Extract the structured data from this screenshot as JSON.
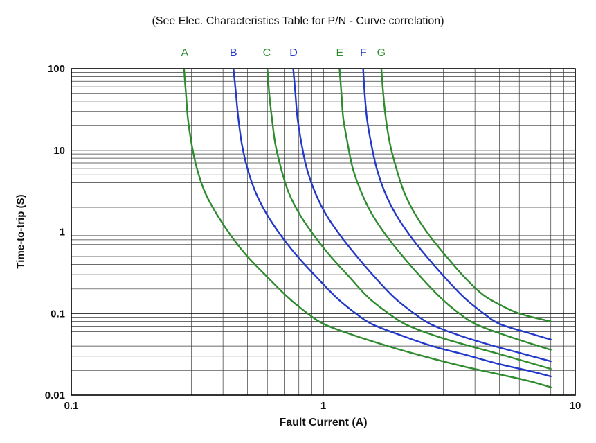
{
  "title": "(See Elec. Characteristics Table for P/N - Curve correlation)",
  "chart_data": {
    "type": "line",
    "title": "(See Elec. Characteristics Table for P/N - Curve correlation)",
    "xlabel": "Fault Current (A)",
    "ylabel": "Time-to-trip (S)",
    "x_scale": "log",
    "y_scale": "log",
    "xlim": [
      0.1,
      10
    ],
    "ylim": [
      0.01,
      100
    ],
    "x_ticks": [
      {
        "value": 0.1,
        "label": "0.1"
      },
      {
        "value": 1,
        "label": "1"
      },
      {
        "value": 10,
        "label": "10"
      }
    ],
    "y_ticks": [
      {
        "value": 100,
        "label": "100"
      },
      {
        "value": 10,
        "label": "10"
      },
      {
        "value": 1,
        "label": "1"
      },
      {
        "value": 0.1,
        "label": "0.1"
      },
      {
        "value": 0.01,
        "label": "0.01"
      }
    ],
    "grid": "log major and minor, black on white",
    "legend_position": "labels above plot",
    "colors": {
      "green": "#2e8b2e",
      "blue": "#2238c8",
      "grid": "#000000",
      "minor_grid": "#3a3a3a"
    },
    "series": [
      {
        "name": "A",
        "color": "green",
        "label_x": 0.282,
        "points": [
          [
            0.28,
            100
          ],
          [
            0.285,
            50
          ],
          [
            0.29,
            25
          ],
          [
            0.3,
            12
          ],
          [
            0.315,
            6
          ],
          [
            0.34,
            3
          ],
          [
            0.38,
            1.6
          ],
          [
            0.43,
            0.9
          ],
          [
            0.5,
            0.5
          ],
          [
            0.6,
            0.28
          ],
          [
            0.72,
            0.16
          ],
          [
            0.85,
            0.105
          ],
          [
            1.0,
            0.075
          ],
          [
            1.3,
            0.055
          ],
          [
            1.8,
            0.04
          ],
          [
            2.5,
            0.03
          ],
          [
            3.5,
            0.023
          ],
          [
            5.0,
            0.018
          ],
          [
            6.5,
            0.015
          ],
          [
            8.0,
            0.0125
          ]
        ]
      },
      {
        "name": "B",
        "color": "blue",
        "label_x": 0.44,
        "points": [
          [
            0.44,
            100
          ],
          [
            0.45,
            50
          ],
          [
            0.46,
            25
          ],
          [
            0.475,
            12
          ],
          [
            0.5,
            6
          ],
          [
            0.54,
            3
          ],
          [
            0.6,
            1.6
          ],
          [
            0.68,
            0.9
          ],
          [
            0.79,
            0.5
          ],
          [
            0.94,
            0.28
          ],
          [
            1.12,
            0.16
          ],
          [
            1.32,
            0.105
          ],
          [
            1.55,
            0.075
          ],
          [
            2.0,
            0.055
          ],
          [
            2.7,
            0.04
          ],
          [
            3.7,
            0.031
          ],
          [
            5.0,
            0.024
          ],
          [
            6.5,
            0.02
          ],
          [
            8.0,
            0.017
          ]
        ]
      },
      {
        "name": "C",
        "color": "green",
        "label_x": 0.597,
        "points": [
          [
            0.6,
            100
          ],
          [
            0.61,
            50
          ],
          [
            0.625,
            25
          ],
          [
            0.645,
            12
          ],
          [
            0.68,
            6
          ],
          [
            0.73,
            3
          ],
          [
            0.81,
            1.6
          ],
          [
            0.92,
            0.9
          ],
          [
            1.07,
            0.5
          ],
          [
            1.27,
            0.28
          ],
          [
            1.5,
            0.16
          ],
          [
            1.78,
            0.105
          ],
          [
            2.1,
            0.075
          ],
          [
            2.7,
            0.055
          ],
          [
            3.6,
            0.042
          ],
          [
            4.8,
            0.033
          ],
          [
            6.3,
            0.026
          ],
          [
            8.0,
            0.021
          ]
        ]
      },
      {
        "name": "D",
        "color": "blue",
        "label_x": 0.762,
        "points": [
          [
            0.76,
            100
          ],
          [
            0.775,
            50
          ],
          [
            0.79,
            25
          ],
          [
            0.82,
            12
          ],
          [
            0.86,
            6
          ],
          [
            0.93,
            3
          ],
          [
            1.03,
            1.6
          ],
          [
            1.17,
            0.9
          ],
          [
            1.36,
            0.5
          ],
          [
            1.6,
            0.28
          ],
          [
            1.9,
            0.16
          ],
          [
            2.25,
            0.105
          ],
          [
            2.65,
            0.075
          ],
          [
            3.4,
            0.055
          ],
          [
            4.5,
            0.042
          ],
          [
            6.0,
            0.033
          ],
          [
            8.0,
            0.026
          ]
        ]
      },
      {
        "name": "E",
        "color": "green",
        "label_x": 1.163,
        "points": [
          [
            1.16,
            100
          ],
          [
            1.18,
            50
          ],
          [
            1.2,
            25
          ],
          [
            1.25,
            12
          ],
          [
            1.31,
            6
          ],
          [
            1.42,
            3
          ],
          [
            1.57,
            1.6
          ],
          [
            1.78,
            0.9
          ],
          [
            2.07,
            0.5
          ],
          [
            2.44,
            0.28
          ],
          [
            2.9,
            0.16
          ],
          [
            3.4,
            0.105
          ],
          [
            4.0,
            0.075
          ],
          [
            5.2,
            0.055
          ],
          [
            6.8,
            0.042
          ],
          [
            8.0,
            0.036
          ]
        ]
      },
      {
        "name": "F",
        "color": "blue",
        "label_x": 1.442,
        "points": [
          [
            1.44,
            100
          ],
          [
            1.46,
            50
          ],
          [
            1.49,
            25
          ],
          [
            1.55,
            12
          ],
          [
            1.63,
            6
          ],
          [
            1.76,
            3
          ],
          [
            1.95,
            1.6
          ],
          [
            2.21,
            0.9
          ],
          [
            2.57,
            0.5
          ],
          [
            3.03,
            0.28
          ],
          [
            3.6,
            0.16
          ],
          [
            4.25,
            0.105
          ],
          [
            5.0,
            0.075
          ],
          [
            6.5,
            0.058
          ],
          [
            8.0,
            0.048
          ]
        ]
      },
      {
        "name": "G",
        "color": "green",
        "label_x": 1.7,
        "points": [
          [
            1.7,
            100
          ],
          [
            1.73,
            50
          ],
          [
            1.77,
            25
          ],
          [
            1.84,
            12
          ],
          [
            1.95,
            6
          ],
          [
            2.1,
            3
          ],
          [
            2.33,
            1.6
          ],
          [
            2.64,
            0.9
          ],
          [
            3.08,
            0.5
          ],
          [
            3.63,
            0.28
          ],
          [
            4.3,
            0.17
          ],
          [
            5.1,
            0.125
          ],
          [
            6.0,
            0.1
          ],
          [
            7.0,
            0.088
          ],
          [
            8.0,
            0.08
          ]
        ]
      }
    ]
  }
}
